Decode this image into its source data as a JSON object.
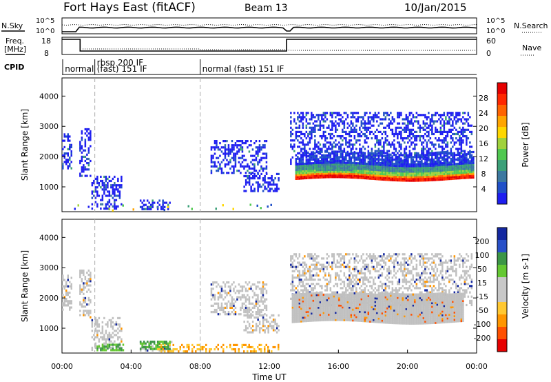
{
  "header": {
    "station": "Fort Hays East (fitACF)",
    "beam": "Beam 13",
    "date": "10/Jan/2015"
  },
  "strip_labels": {
    "nsky": "N.Sky",
    "nsearch": "N.Search",
    "freq_line1": "Freq.",
    "freq_line2": "[MHz]",
    "nave": "Nave",
    "cpid": "CPID"
  },
  "strip_ticks": {
    "noise_left": [
      "10^5",
      "10^0"
    ],
    "noise_right": [
      "10^5",
      "10^0"
    ],
    "freq_left": [
      "18",
      "8"
    ],
    "freq_right": [
      "60",
      "0"
    ]
  },
  "cpid_segments": [
    {
      "label": "normal",
      "start": 0.05
    },
    {
      "label": "rbsp 200 IF",
      "start": 1.9
    },
    {
      "label": "(fast) 151 IF",
      "start": 1.9
    },
    {
      "label": "normal (fast) 151 IF",
      "start": 8.0
    }
  ],
  "chart_data": [
    {
      "type": "heatmap",
      "name": "power",
      "ylabel": "Slant Range [km]",
      "xlabel": "",
      "xlim": [
        0,
        24
      ],
      "ylim": [
        180,
        4600
      ],
      "yticks": [
        1000,
        2000,
        3000,
        4000
      ],
      "colorbar": {
        "label": "Power [dB]",
        "ticks": [
          "4",
          "8",
          "12",
          "16",
          "20",
          "24",
          "28"
        ],
        "colors": [
          "#1e1ef0",
          "#2050c8",
          "#3c78a0",
          "#3ca078",
          "#50c850",
          "#a0d23c",
          "#ffd700",
          "#ffa500",
          "#ff6400",
          "#ff2800",
          "#e60000"
        ]
      },
      "scatter_regions": [
        {
          "t0": 0.0,
          "t1": 0.5,
          "r0": 1650,
          "r1": 2800
        },
        {
          "t0": 1.0,
          "t1": 1.6,
          "r0": 1400,
          "r1": 3000
        },
        {
          "t0": 1.7,
          "t1": 3.4,
          "r0": 250,
          "r1": 1400
        },
        {
          "t0": 4.5,
          "t1": 6.3,
          "r0": 300,
          "r1": 600
        },
        {
          "t0": 8.6,
          "t1": 11.8,
          "r0": 1500,
          "r1": 2600
        },
        {
          "t0": 10.5,
          "t1": 12.5,
          "r0": 900,
          "r1": 1500
        },
        {
          "t0": 13.2,
          "t1": 23.7,
          "r0": 1800,
          "r1": 3500
        }
      ],
      "main_band": {
        "t0": 13.5,
        "t1": 23.8,
        "r_low": 1300,
        "r_high": 2200
      }
    },
    {
      "type": "heatmap",
      "name": "velocity",
      "ylabel": "Slant Range [km]",
      "xlabel": "Time UT",
      "xlim": [
        0,
        24
      ],
      "ylim": [
        180,
        4600
      ],
      "yticks": [
        1000,
        2000,
        3000,
        4000
      ],
      "xticks": [
        "00:00",
        "04:00",
        "08:00",
        "12:00",
        "16:00",
        "20:00",
        "00:00"
      ],
      "colorbar": {
        "label": "Velocity [m s-1]",
        "ticks": [
          "200",
          "100",
          "50",
          "15",
          "-15",
          "-50",
          "-100",
          "-200"
        ],
        "colors": [
          "#1428a0",
          "#2850c8",
          "#3c9646",
          "#64c832",
          "#c8c8c8",
          "#c8c8c8",
          "#ffc832",
          "#ff9600",
          "#ff5000",
          "#e60000"
        ]
      },
      "ground_scatter_band": {
        "t0": 13.3,
        "t1": 23.2,
        "r_low": 1250,
        "r_high": 2200
      },
      "green_regions": [
        {
          "t0": 2.0,
          "t1": 3.5,
          "r0": 250,
          "r1": 500
        },
        {
          "t0": 4.5,
          "t1": 6.2,
          "r0": 350,
          "r1": 600
        }
      ]
    }
  ],
  "colors": {
    "axis": "#000000",
    "dashed": "#aaaaaa",
    "gs_gray": "#c0c0c0"
  }
}
